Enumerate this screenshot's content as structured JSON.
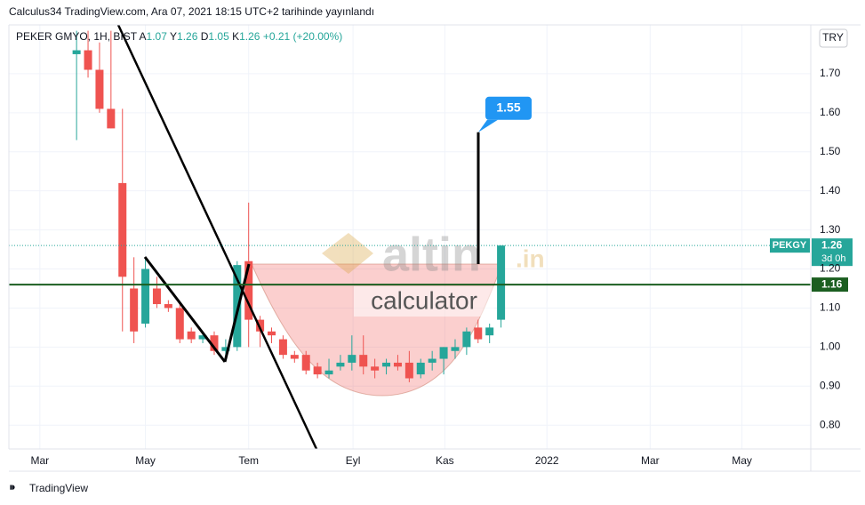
{
  "header": "Calculus34 TradingView.com, Ara 07, 2021 18:15 UTC+2 tarihinde yayınlandı",
  "footer": "TradingView",
  "watermark": {
    "brand": "altin",
    "suffix": ".in",
    "caption": "calculator"
  },
  "chart_data": {
    "type": "candlestick",
    "symbol": "PEKER GMYO, 1H, BIST",
    "ohlc_prefixes": [
      "A",
      "Y",
      "D",
      "K"
    ],
    "change": "+0.21 (+20.00%)",
    "currency": "TRY",
    "ticker": "PEKGY",
    "countdown": "3d 0h",
    "up_color": "#26a69a",
    "down_color": "#ef5350",
    "candles": {
      "open": [
        1.75,
        1.76,
        1.71,
        1.61,
        1.42,
        1.15,
        1.06,
        1.15,
        1.11,
        1.1,
        1.04,
        1.02,
        1.03,
        0.99,
        1.0,
        1.22,
        1.07,
        1.04,
        1.02,
        0.98,
        0.98,
        0.95,
        0.93,
        0.95,
        0.96,
        0.98,
        0.95,
        0.95,
        0.96,
        0.96,
        0.93,
        0.96,
        0.97,
        0.99,
        1.0,
        1.05,
        1.03,
        1.07
      ],
      "high": [
        1.81,
        1.81,
        1.78,
        1.81,
        1.61,
        1.23,
        1.23,
        1.18,
        1.12,
        1.11,
        1.05,
        1.04,
        1.04,
        1.02,
        1.22,
        1.37,
        1.08,
        1.05,
        1.03,
        0.99,
        0.99,
        0.96,
        0.97,
        0.98,
        1.03,
        1.03,
        0.97,
        0.97,
        0.98,
        0.99,
        0.97,
        0.99,
        1.0,
        1.02,
        1.05,
        1.07,
        1.06,
        1.26
      ],
      "low": [
        1.53,
        1.69,
        1.6,
        1.56,
        1.04,
        1.01,
        1.05,
        1.1,
        1.09,
        1.01,
        1.01,
        1.01,
        0.98,
        0.97,
        0.99,
        1.0,
        1.0,
        1.01,
        0.97,
        0.96,
        0.93,
        0.92,
        0.92,
        0.94,
        0.94,
        0.93,
        0.92,
        0.93,
        0.94,
        0.91,
        0.92,
        0.94,
        0.93,
        0.97,
        0.98,
        1.01,
        1.01,
        1.05
      ],
      "close": [
        1.76,
        1.71,
        1.61,
        1.56,
        1.18,
        1.04,
        1.2,
        1.11,
        1.1,
        1.02,
        1.02,
        1.03,
        0.99,
        1.0,
        1.21,
        1.07,
        1.04,
        1.03,
        0.98,
        0.97,
        0.94,
        0.93,
        0.94,
        0.96,
        0.98,
        0.95,
        0.94,
        0.96,
        0.95,
        0.92,
        0.96,
        0.97,
        1.0,
        1.0,
        1.04,
        1.02,
        1.05,
        1.26
      ]
    },
    "level": 1.16,
    "target": 1.55,
    "xlim": [
      -5.9,
      64.0
    ],
    "xticks": [
      {
        "value": -3.2,
        "label": "Mar"
      },
      {
        "value": 6.0,
        "label": "May"
      },
      {
        "value": 15.0,
        "label": "Tem"
      },
      {
        "value": 24.1,
        "label": "Eyl"
      },
      {
        "value": 32.1,
        "label": "Kas"
      },
      {
        "value": 41.0,
        "label": "2022"
      },
      {
        "value": 50.0,
        "label": "Mar"
      },
      {
        "value": 58.0,
        "label": "May"
      }
    ],
    "ylim": [
      0.739,
      1.825
    ],
    "yticks": [
      {
        "value": 0.8,
        "label": "0.80"
      },
      {
        "value": 0.9,
        "label": "0.90"
      },
      {
        "value": 1.0,
        "label": "1.00"
      },
      {
        "value": 1.1,
        "label": "1.10"
      },
      {
        "value": 1.2,
        "label": "1.20"
      },
      {
        "value": 1.3,
        "label": "1.30"
      },
      {
        "value": 1.4,
        "label": "1.40"
      },
      {
        "value": 1.5,
        "label": "1.50"
      },
      {
        "value": 1.6,
        "label": "1.60"
      },
      {
        "value": 1.7,
        "label": "1.70"
      }
    ],
    "grid": true
  }
}
